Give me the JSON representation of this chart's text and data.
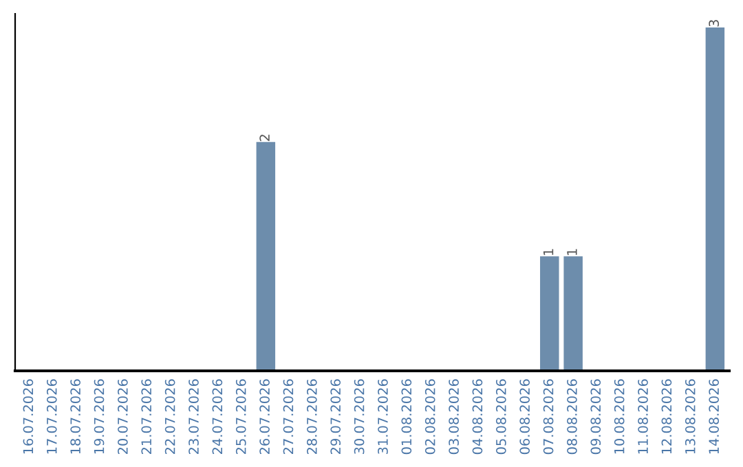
{
  "chart_data": {
    "type": "bar",
    "categories": [
      "16.07.2026",
      "17.07.2026",
      "18.07.2026",
      "19.07.2026",
      "20.07.2026",
      "21.07.2026",
      "22.07.2026",
      "23.07.2026",
      "24.07.2026",
      "25.07.2026",
      "26.07.2026",
      "27.07.2026",
      "28.07.2026",
      "29.07.2026",
      "30.07.2026",
      "31.07.2026",
      "01.08.2026",
      "02.08.2026",
      "03.08.2026",
      "04.08.2026",
      "05.08.2026",
      "06.08.2026",
      "07.08.2026",
      "08.08.2026",
      "09.08.2026",
      "10.08.2026",
      "11.08.2026",
      "12.08.2026",
      "13.08.2026",
      "14.08.2026"
    ],
    "values": [
      0,
      0,
      0,
      0,
      0,
      0,
      0,
      0,
      0,
      0,
      2,
      0,
      0,
      0,
      0,
      0,
      0,
      0,
      0,
      0,
      0,
      0,
      1,
      1,
      0,
      0,
      0,
      0,
      0,
      3
    ],
    "value_labels": [
      null,
      null,
      null,
      null,
      null,
      null,
      null,
      null,
      null,
      null,
      "2",
      null,
      null,
      null,
      null,
      null,
      null,
      null,
      null,
      null,
      null,
      null,
      "1",
      "1",
      null,
      null,
      null,
      null,
      null,
      "3"
    ],
    "color": "#6d8dac",
    "tick_labels": "x",
    "grid": false,
    "legend": false
  }
}
